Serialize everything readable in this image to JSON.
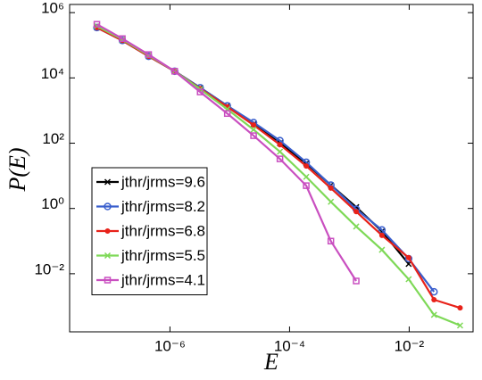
{
  "chart_data": {
    "type": "line",
    "xlabel": "E",
    "ylabel": "P(E)",
    "xscale": "log",
    "yscale": "log",
    "xlim": [
      2.1e-08,
      0.117
    ],
    "ylim": [
      0.000166,
      1780000.0
    ],
    "xticks": [
      {
        "value": 1e-06,
        "label": "10⁻⁶"
      },
      {
        "value": 0.0001,
        "label": "10⁻⁴"
      },
      {
        "value": 0.01,
        "label": "10⁻²"
      }
    ],
    "yticks": [
      {
        "value": 0.01,
        "label": "10⁻²"
      },
      {
        "value": 1,
        "label": "10⁰"
      },
      {
        "value": 100,
        "label": "10²"
      },
      {
        "value": 10000,
        "label": "10⁴"
      },
      {
        "value": 1000000,
        "label": "10⁶"
      }
    ],
    "legend": "lower left",
    "x": [
      6e-08,
      1.6e-07,
      4.4e-07,
      1.2e-06,
      3.2e-06,
      9.1e-06,
      2.5e-05,
      6.9e-05,
      0.00019,
      0.00049,
      0.0013,
      0.0035,
      0.0098,
      0.026,
      0.071
    ],
    "series": [
      {
        "name": "jthr/jrms=9.6",
        "color": "#000000",
        "marker": "x",
        "values": [
          350000,
          140000,
          46000,
          16000,
          5000,
          1400,
          380,
          100,
          24,
          5.2,
          1.1,
          0.2,
          0.02,
          null,
          null
        ]
      },
      {
        "name": "jthr/jrms=8.2",
        "color": "#3a5fcd",
        "marker": "circle",
        "values": [
          350000,
          140000,
          46000,
          16000,
          5000,
          1400,
          430,
          120,
          26,
          5.2,
          0.95,
          0.22,
          0.029,
          0.0028,
          null
        ]
      },
      {
        "name": "jthr/jrms=6.8",
        "color": "#e8221a",
        "marker": "dot",
        "values": [
          350000,
          140000,
          46000,
          16000,
          4700,
          1300,
          360,
          90,
          20,
          4.2,
          0.8,
          0.15,
          0.031,
          0.0016,
          0.0009
        ]
      },
      {
        "name": "jthr/jrms=5.5",
        "color": "#7ed957",
        "marker": "x",
        "values": [
          390000,
          150000,
          49000,
          16000,
          4500,
          1100,
          260,
          55,
          9.3,
          1.6,
          0.28,
          0.054,
          0.0068,
          0.00055,
          0.00026
        ]
      },
      {
        "name": "jthr/jrms=4.1",
        "color": "#c94fc0",
        "marker": "square",
        "values": [
          440000,
          160000,
          52000,
          16000,
          3700,
          810,
          170,
          33,
          5,
          0.1,
          0.006,
          null,
          null,
          null,
          null
        ]
      }
    ]
  }
}
